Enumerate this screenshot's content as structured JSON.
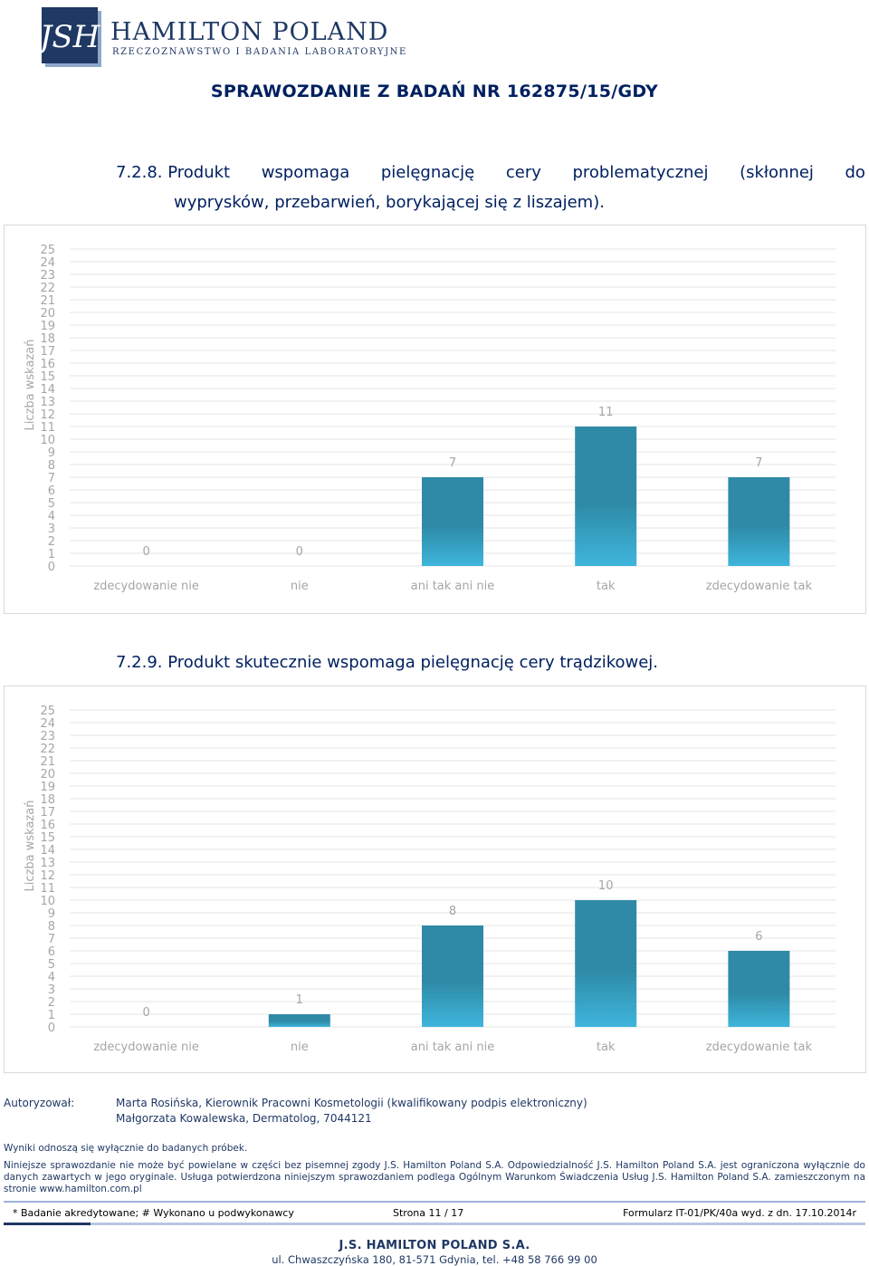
{
  "header": {
    "brand_name": "HAMILTON POLAND",
    "brand_sub": "RZECZOZNAWSTWO I BADANIA LABORATORYJNE",
    "logo_icon": "jsh-monogram-logo",
    "report_title": "SPRAWOZDANIE Z BADAŃ NR 162875/15/GDY"
  },
  "sections": [
    {
      "heading_words": [
        "7.2.8. Produkt",
        "wspomaga",
        "pielęgnację",
        "cery",
        "problematycznej",
        "(skłonnej",
        "do"
      ],
      "heading_line2": "wyprysków, przebarwień, borykającej się z liszajem)."
    },
    {
      "heading": "7.2.9. Produkt skutecznie wspomaga pielęgnację cery trądzikowej."
    }
  ],
  "chart_data": [
    {
      "type": "bar",
      "ylabel": "Liczba wskazań",
      "ylim": [
        0,
        25
      ],
      "yticks": [
        "25",
        "24",
        "23",
        "22",
        "21",
        "20",
        "19",
        "18",
        "17",
        "16",
        "15",
        "14",
        "13",
        "12",
        "11",
        "10",
        "9",
        "8",
        "7",
        "6",
        "5",
        "4",
        "3",
        "2",
        "1",
        "0"
      ],
      "categories": [
        "zdecydowanie nie",
        "nie",
        "ani tak ani nie",
        "tak",
        "zdecydowanie tak"
      ],
      "values": [
        0,
        0,
        7,
        11,
        7
      ],
      "color": "#2e8aa6",
      "color_light": "#3fb5dc"
    },
    {
      "type": "bar",
      "ylabel": "Liczba wskazań",
      "ylim": [
        0,
        25
      ],
      "yticks": [
        "25",
        "24",
        "23",
        "22",
        "21",
        "20",
        "19",
        "18",
        "17",
        "16",
        "15",
        "14",
        "13",
        "12",
        "11",
        "10",
        "9",
        "8",
        "7",
        "6",
        "5",
        "4",
        "3",
        "2",
        "1",
        "0"
      ],
      "categories": [
        "zdecydowanie nie",
        "nie",
        "ani tak ani nie",
        "tak",
        "zdecydowanie tak"
      ],
      "values": [
        0,
        1,
        8,
        10,
        6
      ],
      "color": "#2e8aa6",
      "color_light": "#3fb5dc"
    }
  ],
  "footer": {
    "authorized_label": "Autoryzował:",
    "signer1": "Marta Rosińska, Kierownik Pracowni Kosmetologii (kwalifikowany podpis elektroniczny)",
    "signer2": "Małgorzata Kowalewska, Dermatolog, 7044121",
    "results_note": "Wyniki odnoszą się wyłącznie do badanych próbek.",
    "disclaimer": "Niniejsze sprawozdanie nie może być powielane w części bez pisemnej zgody J.S. Hamilton Poland S.A. Odpowiedzialność J.S. Hamilton Poland S.A. jest ograniczona wyłącznie do danych zawartych w jego oryginale. Usługa potwierdzona niniejszym sprawozdaniem podlega Ogólnym Warunkom Świadczenia Usług J.S. Hamilton Poland S.A. zamieszczonym na stronie www.hamilton.com.pl",
    "accreditation": "* Badanie akredytowane; # Wykonano u podwykonawcy",
    "page": "Strona 11 / 17",
    "form": "Formularz IT-01/PK/40a wyd. z dn. 17.10.2014r",
    "company": "J.S. HAMILTON POLAND S.A.",
    "address": "ul. Chwaszczyńska 180, 81-571 Gdynia, tel. +48 58 766 99 00"
  }
}
